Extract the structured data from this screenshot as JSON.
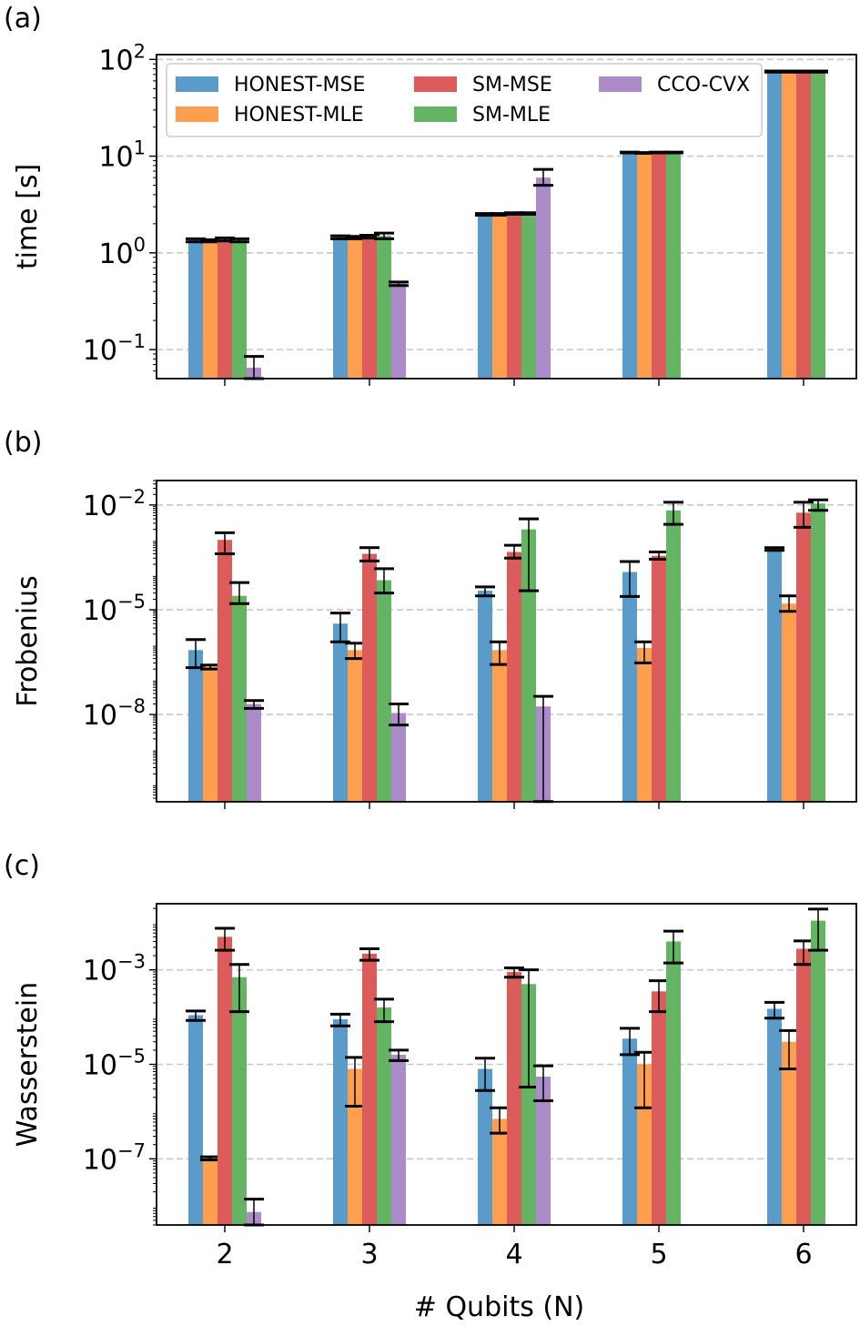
{
  "chart_data": {
    "type": "bar",
    "log_scale": true,
    "categories": [
      "2",
      "3",
      "4",
      "5",
      "6"
    ],
    "xlabel": "# Qubits (N)",
    "legend": {
      "placement": "top",
      "entries": [
        {
          "name": "HONEST-MSE",
          "color": "#5b9bc9"
        },
        {
          "name": "HONEST-MLE",
          "color": "#fd9f4e"
        },
        {
          "name": "SM-MSE",
          "color": "#dc5b5b"
        },
        {
          "name": "SM-MLE",
          "color": "#65b464"
        },
        {
          "name": "CCO-CVX",
          "color": "#ab8cc8"
        }
      ]
    },
    "panels": [
      {
        "label": "(a)",
        "ylabel": "time [s]",
        "ylim_log10": [
          -1.3,
          2.05
        ],
        "ticks": [
          {
            "exp": -1,
            "base": "10",
            "power": "−1"
          },
          {
            "exp": 0,
            "base": "10",
            "power": "0"
          },
          {
            "exp": 1,
            "base": "10",
            "power": "1"
          },
          {
            "exp": 2,
            "base": "10",
            "power": "2"
          }
        ],
        "series": [
          {
            "name": "HONEST-MSE",
            "values": [
              1.35,
              1.45,
              2.5,
              10.9,
              75
            ],
            "err_lo": [
              1.3,
              1.4,
              2.45,
              10.8,
              74
            ],
            "err_hi": [
              1.4,
              1.5,
              2.55,
              11.0,
              76
            ]
          },
          {
            "name": "HONEST-MLE",
            "values": [
              1.33,
              1.44,
              2.5,
              10.8,
              75
            ],
            "err_lo": [
              1.3,
              1.4,
              2.45,
              10.7,
              74
            ],
            "err_hi": [
              1.37,
              1.48,
              2.55,
              10.9,
              76
            ]
          },
          {
            "name": "SM-MSE",
            "values": [
              1.38,
              1.47,
              2.55,
              10.9,
              75
            ],
            "err_lo": [
              1.33,
              1.42,
              2.5,
              10.8,
              74
            ],
            "err_hi": [
              1.43,
              1.52,
              2.6,
              11.0,
              76
            ]
          },
          {
            "name": "SM-MLE",
            "values": [
              1.35,
              1.5,
              2.55,
              10.9,
              75
            ],
            "err_lo": [
              1.3,
              1.4,
              2.5,
              10.8,
              74
            ],
            "err_hi": [
              1.4,
              1.6,
              2.6,
              11.0,
              76
            ]
          },
          {
            "name": "CCO-CVX",
            "values": [
              0.065,
              0.48,
              6.0,
              null,
              null
            ],
            "err_lo": [
              0.05,
              0.46,
              5.0,
              null,
              null
            ],
            "err_hi": [
              0.085,
              0.5,
              7.3,
              null,
              null
            ]
          }
        ]
      },
      {
        "label": "(b)",
        "ylabel": "Frobenius",
        "ylim_log10": [
          -10.5,
          -1.3
        ],
        "ticks": [
          {
            "exp": -8,
            "base": "10",
            "power": "−8"
          },
          {
            "exp": -5,
            "base": "10",
            "power": "−5"
          },
          {
            "exp": -2,
            "base": "10",
            "power": "−2"
          }
        ],
        "series": [
          {
            "name": "HONEST-MSE",
            "values": [
              7e-07,
              4e-06,
              3.5e-05,
              0.00012,
              0.00055
            ],
            "err_lo": [
              2.2e-07,
              1.2e-06,
              2.5e-05,
              2.4e-05,
              0.0005
            ],
            "err_hi": [
              1.4e-06,
              8e-06,
              4.5e-05,
              0.00024,
              0.0006
            ]
          },
          {
            "name": "HONEST-MLE",
            "values": [
              2.3e-07,
              7e-07,
              7e-07,
              8e-07,
              1.5e-05
            ],
            "err_lo": [
              2e-07,
              4e-07,
              2.7e-07,
              3e-07,
              9e-06
            ],
            "err_hi": [
              2.6e-07,
              1.1e-06,
              1.2e-06,
              1.2e-06,
              2.5e-05
            ]
          },
          {
            "name": "SM-MSE",
            "values": [
              0.001,
              0.0004,
              0.00045,
              0.00035,
              0.006
            ],
            "err_lo": [
              0.0004,
              0.00025,
              0.0003,
              0.00028,
              0.0023
            ],
            "err_hi": [
              0.0016,
              0.0006,
              0.0007,
              0.00045,
              0.012
            ]
          },
          {
            "name": "SM-MLE",
            "values": [
              2.5e-05,
              7e-05,
              0.002,
              0.007,
              0.011
            ],
            "err_lo": [
              1.5e-05,
              3e-05,
              3.5e-05,
              0.0028,
              0.007
            ],
            "err_hi": [
              6e-05,
              0.00015,
              0.004,
              0.012,
              0.014
            ]
          },
          {
            "name": "CCO-CVX",
            "values": [
              2e-08,
              1.1e-08,
              1.7e-08,
              null,
              null
            ],
            "err_lo": [
              1.5e-08,
              5e-09,
              3.2e-11,
              null,
              null
            ],
            "err_hi": [
              2.5e-08,
              2e-08,
              3.3e-08,
              null,
              null
            ]
          }
        ]
      },
      {
        "label": "(c)",
        "ylabel": "Wasserstein",
        "ylim_log10": [
          -8.4,
          -1.6
        ],
        "ticks": [
          {
            "exp": -7,
            "base": "10",
            "power": "−7"
          },
          {
            "exp": -5,
            "base": "10",
            "power": "−5"
          },
          {
            "exp": -3,
            "base": "10",
            "power": "−3"
          }
        ],
        "series": [
          {
            "name": "HONEST-MSE",
            "values": [
              0.00011,
              9e-05,
              8e-06,
              3.5e-05,
              0.00015
            ],
            "err_lo": [
              8.5e-05,
              6.5e-05,
              2.8e-06,
              1.6e-05,
              9.5e-05
            ],
            "err_hi": [
              0.000135,
              0.000115,
              1.35e-05,
              5.8e-05,
              0.000205
            ]
          },
          {
            "name": "HONEST-MLE",
            "values": [
              1e-07,
              8e-06,
              7e-07,
              1e-05,
              3e-05
            ],
            "err_lo": [
              9.5e-08,
              1.3e-06,
              3.5e-07,
              1.2e-06,
              8e-06
            ],
            "err_hi": [
              1.1e-07,
              1.4e-05,
              1.2e-06,
              1.8e-05,
              5.2e-05
            ]
          },
          {
            "name": "SM-MSE",
            "values": [
              0.005,
              0.0022,
              0.0009,
              0.00035,
              0.0028
            ],
            "err_lo": [
              0.0026,
              0.0016,
              0.0007,
              0.00013,
              0.0013
            ],
            "err_hi": [
              0.0076,
              0.0028,
              0.0011,
              0.00059,
              0.0041
            ]
          },
          {
            "name": "SM-MLE",
            "values": [
              0.0007,
              0.00016,
              0.0005,
              0.004,
              0.011
            ],
            "err_lo": [
              0.00013,
              8e-05,
              3.3e-06,
              0.0014,
              0.0026
            ],
            "err_hi": [
              0.0013,
              0.00024,
              0.001,
              0.0066,
              0.0194
            ]
          },
          {
            "name": "CCO-CVX",
            "values": [
              7.5e-09,
              1.6e-05,
              5.5e-06,
              null,
              null
            ],
            "err_lo": [
              1e-09,
              1.2e-05,
              1.7e-06,
              null,
              null
            ],
            "err_hi": [
              1.4e-08,
              2e-05,
              9.3e-06,
              null,
              null
            ]
          }
        ]
      }
    ]
  }
}
